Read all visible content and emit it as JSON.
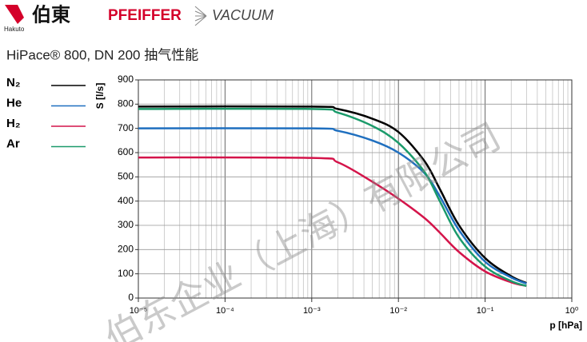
{
  "header": {
    "logo_mark": "伯東",
    "logo_sub": "Hakuto",
    "brand": "PFEIFFER",
    "brand2": "VACUUM"
  },
  "watermark": "伯东企业（上海）有限公司",
  "chart_data": {
    "type": "line",
    "title": "HiPace® 800, DN 200  抽气性能",
    "x_label": "p [hPa]",
    "y_label": "S [l/s]",
    "log_x": true,
    "grid": true,
    "minor_grid_x": true,
    "xlim": [
      1e-05,
      1
    ],
    "ylim": [
      0,
      900
    ],
    "xticks": [
      {
        "value": 1e-05,
        "label": "10⁻⁵"
      },
      {
        "value": 0.0001,
        "label": "10⁻⁴"
      },
      {
        "value": 0.001,
        "label": "10⁻³"
      },
      {
        "value": 0.01,
        "label": "10⁻²"
      },
      {
        "value": 0.1,
        "label": "10⁻¹"
      },
      {
        "value": 1,
        "label": "10⁰"
      }
    ],
    "yticks": [
      0,
      100,
      200,
      300,
      400,
      500,
      600,
      700,
      800,
      900
    ],
    "x": [
      1e-05,
      0.001,
      0.002,
      0.005,
      0.01,
      0.02,
      0.03,
      0.05,
      0.1,
      0.2,
      0.3
    ],
    "series": [
      {
        "name": "N₂",
        "color": "#000000",
        "values": [
          790,
          790,
          780,
          740,
          685,
          565,
          450,
          300,
          165,
          90,
          62
        ]
      },
      {
        "name": "He",
        "color": "#1f6fbf",
        "values": [
          700,
          700,
          690,
          650,
          600,
          515,
          420,
          280,
          150,
          85,
          60
        ]
      },
      {
        "name": "H₂",
        "color": "#d4144a",
        "values": [
          580,
          578,
          560,
          480,
          410,
          330,
          270,
          190,
          110,
          65,
          50
        ]
      },
      {
        "name": "Ar",
        "color": "#1a9a6a",
        "values": [
          780,
          780,
          765,
          710,
          640,
          520,
          400,
          250,
          130,
          70,
          50
        ]
      }
    ]
  }
}
